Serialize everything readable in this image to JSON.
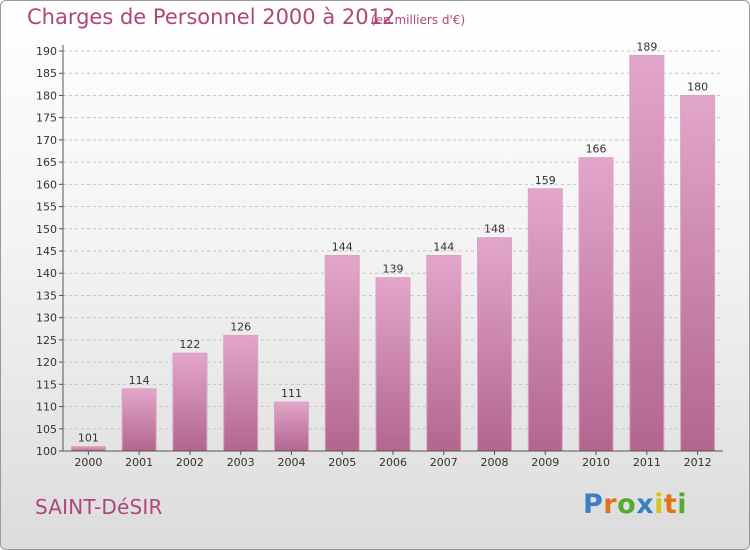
{
  "title": "Charges de Personnel 2000 à 2012",
  "subtitle": "(en milliers d'€)",
  "commune": "SAINT-DéSIR",
  "logo": {
    "letters": [
      "P",
      "r",
      "o",
      "x",
      "i",
      "t",
      "i"
    ],
    "colors": [
      "#3a7fc4",
      "#e0731c",
      "#59a832",
      "#3a7fc4",
      "#d9c21a",
      "#e0731c",
      "#59a832"
    ]
  },
  "colors": {
    "bar_top": "#e3a6cb",
    "bar_bottom": "#b2668f",
    "title": "#b0457a"
  },
  "chart_data": {
    "type": "bar",
    "categories": [
      "2000",
      "2001",
      "2002",
      "2003",
      "2004",
      "2005",
      "2006",
      "2007",
      "2008",
      "2009",
      "2010",
      "2011",
      "2012"
    ],
    "values": [
      101,
      114,
      122,
      126,
      111,
      144,
      139,
      144,
      148,
      159,
      166,
      189,
      180
    ],
    "ylim": [
      100,
      190
    ],
    "yticks": [
      100,
      105,
      110,
      115,
      120,
      125,
      130,
      135,
      140,
      145,
      150,
      155,
      160,
      165,
      170,
      175,
      180,
      185,
      190
    ],
    "grid": true,
    "data_labels": true
  }
}
